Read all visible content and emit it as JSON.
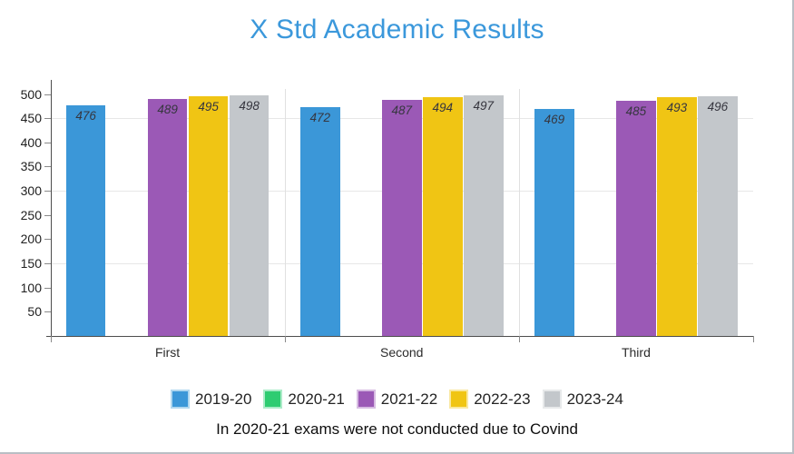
{
  "title": "X Std Academic Results",
  "title_color": "#3b98db",
  "caption": "In 2020-21 exams were not conducted due to Covind",
  "chart_data": {
    "type": "bar",
    "title": "X Std Academic Results",
    "categories": [
      "First",
      "Second",
      "Third"
    ],
    "series": [
      {
        "name": "2019-20",
        "color": "#3b97d8",
        "light": "#b0d7ef",
        "values": [
          476,
          472,
          469
        ]
      },
      {
        "name": "2020-21",
        "color": "#2ecc71",
        "light": "#abebc8",
        "values": [
          null,
          null,
          null
        ]
      },
      {
        "name": "2021-22",
        "color": "#9b59b6",
        "light": "#d7bce2",
        "values": [
          489,
          487,
          485
        ]
      },
      {
        "name": "2022-23",
        "color": "#f0c514",
        "light": "#f9e8a1",
        "values": [
          495,
          494,
          493
        ]
      },
      {
        "name": "2023-24",
        "color": "#c3c7cb",
        "light": "#e7e9ea",
        "values": [
          498,
          497,
          496
        ]
      }
    ],
    "xlabel": "",
    "ylabel": "",
    "ylim": [
      0,
      500
    ],
    "yticks": [
      50,
      100,
      150,
      200,
      250,
      300,
      350,
      400,
      450,
      500
    ],
    "gridlines_y": [
      150,
      300,
      450
    ],
    "grid": true,
    "legend_position": "bottom"
  }
}
